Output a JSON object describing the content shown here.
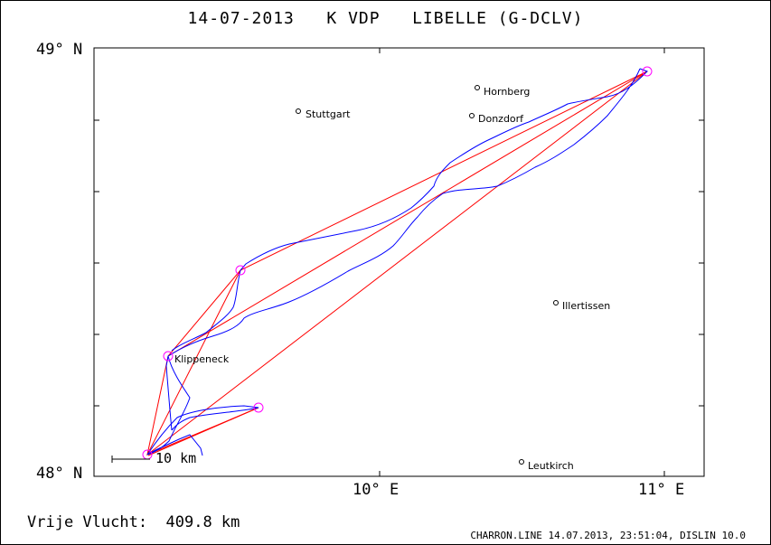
{
  "title": "14-07-2013   K VDP   LIBELLE (G-DCLV)",
  "axes": {
    "lat_top": "49° N",
    "lat_bottom": "48° N",
    "lon_10": "10° E",
    "lon_11": "11° E"
  },
  "places": [
    {
      "name": "Stuttgart"
    },
    {
      "name": "Hornberg"
    },
    {
      "name": "Donzdorf"
    },
    {
      "name": "Illertissen"
    },
    {
      "name": "Klippeneck"
    },
    {
      "name": "Leutkirch"
    }
  ],
  "scale": "10 km",
  "distance": "Vrije Vlucht:  409.8 km",
  "footer": "CHARRON.LINE 14.07.2013, 23:51:04, DISLIN 10.0",
  "colors": {
    "task_line": "#ff0000",
    "track": "#0000ff",
    "turnpoint": "#ff00ff",
    "axis": "#000000"
  }
}
